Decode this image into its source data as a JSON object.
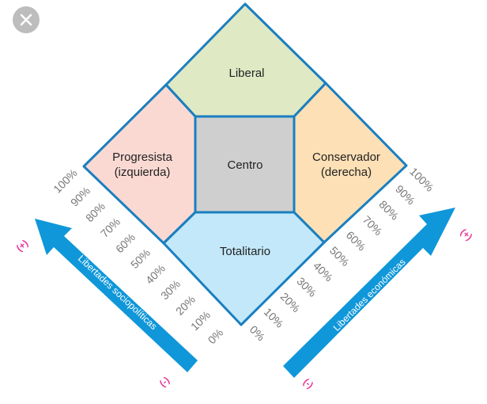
{
  "close_icon": "close-icon",
  "regions": {
    "liberal": "Liberal",
    "progresista": [
      "Progresista",
      "(izquierda)"
    ],
    "centro": "Centro",
    "conservador": [
      "Conservador",
      "(derecha)"
    ],
    "totalitario": "Totalitario"
  },
  "colors": {
    "liberal": "#dfe9c4",
    "progresista": "#fbd9d3",
    "centro": "#cfcfcf",
    "conservador": "#fde0b5",
    "totalitario": "#c3e8f9",
    "border": "#1a7fc0",
    "arrow": "#0f97d9",
    "sign": "#e6399b"
  },
  "axes": {
    "left": {
      "label": "Libertades sociopolíticas",
      "plus": "(+)",
      "minus": "(-)"
    },
    "right": {
      "label": "Libertades económicas",
      "plus": "(+)",
      "minus": "(-)"
    },
    "ticks": [
      "0%",
      "10%",
      "20%",
      "30%",
      "40%",
      "50%",
      "60%",
      "70%",
      "80%",
      "90%",
      "100%"
    ]
  }
}
